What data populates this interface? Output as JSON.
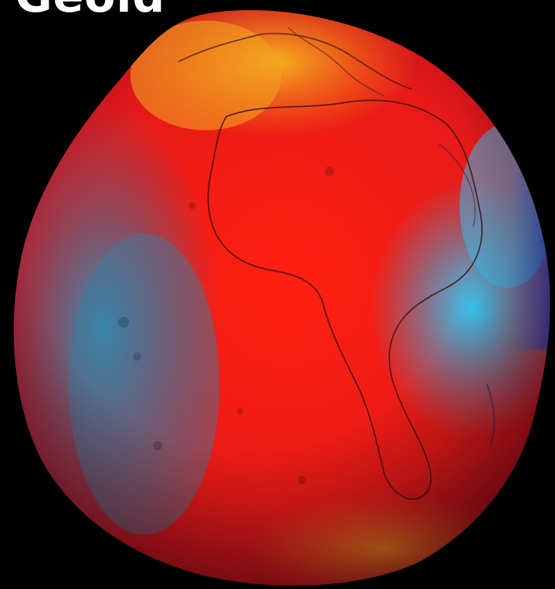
{
  "title": "Geoid",
  "colors": {
    "background": "#000000",
    "high": "#ff1a10",
    "mid": "#f2a020",
    "low": "#2aa8e0",
    "lowest": "#1a3cc8",
    "title_text": "#ffffff"
  },
  "icons": [
    "geoid-globe"
  ]
}
